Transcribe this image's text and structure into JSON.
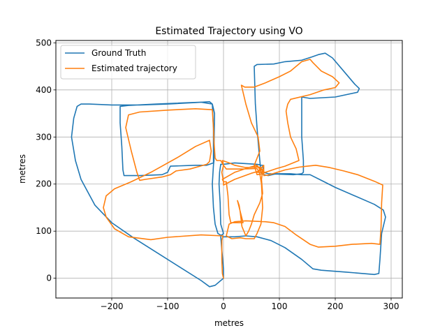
{
  "chart_data": {
    "type": "line",
    "title": "Estimated Trajectory using VO",
    "xlabel": "metres",
    "ylabel": "metres",
    "xlim": [
      -300,
      320
    ],
    "ylim": [
      -42,
      505
    ],
    "xticks": [
      -200,
      -100,
      0,
      100,
      200,
      300
    ],
    "yticks": [
      0,
      100,
      200,
      300,
      400,
      500
    ],
    "grid": true,
    "legend": "top-left",
    "series": [
      {
        "name": "Ground Truth",
        "color": "#1f77b4",
        "points": [
          [
            0,
            0
          ],
          [
            -5,
            -5
          ],
          [
            -15,
            -15
          ],
          [
            -25,
            -18
          ],
          [
            -40,
            -5
          ],
          [
            -80,
            25
          ],
          [
            -120,
            55
          ],
          [
            -160,
            85
          ],
          [
            -200,
            118
          ],
          [
            -230,
            155
          ],
          [
            -255,
            210
          ],
          [
            -265,
            250
          ],
          [
            -272,
            300
          ],
          [
            -268,
            340
          ],
          [
            -262,
            365
          ],
          [
            -255,
            370
          ],
          [
            -240,
            370
          ],
          [
            -200,
            368
          ],
          [
            -150,
            368
          ],
          [
            -100,
            370
          ],
          [
            -50,
            373
          ],
          [
            -25,
            375
          ],
          [
            -20,
            370
          ],
          [
            -18,
            320
          ],
          [
            -18,
            270
          ],
          [
            -18,
            245
          ],
          [
            -30,
            240
          ],
          [
            -50,
            240
          ],
          [
            -95,
            238
          ],
          [
            -100,
            225
          ],
          [
            -110,
            220
          ],
          [
            -150,
            218
          ],
          [
            -178,
            218
          ],
          [
            -180,
            230
          ],
          [
            -182,
            280
          ],
          [
            -185,
            330
          ],
          [
            -185,
            365
          ],
          [
            -170,
            367
          ],
          [
            -120,
            370
          ],
          [
            -80,
            372
          ],
          [
            -40,
            374
          ],
          [
            -20,
            370
          ],
          [
            -16,
            350
          ],
          [
            -17,
            280
          ],
          [
            -17,
            250
          ],
          [
            -18,
            240
          ],
          [
            -20,
            200
          ],
          [
            -18,
            150
          ],
          [
            -15,
            115
          ],
          [
            -10,
            95
          ],
          [
            0,
            88
          ],
          [
            20,
            88
          ],
          [
            40,
            90
          ],
          [
            60,
            88
          ],
          [
            85,
            80
          ],
          [
            110,
            65
          ],
          [
            140,
            40
          ],
          [
            160,
            20
          ],
          [
            175,
            17
          ],
          [
            220,
            13
          ],
          [
            270,
            8
          ],
          [
            278,
            10
          ],
          [
            280,
            40
          ],
          [
            283,
            95
          ],
          [
            290,
            130
          ],
          [
            286,
            145
          ],
          [
            270,
            157
          ],
          [
            200,
            193
          ],
          [
            180,
            205
          ],
          [
            155,
            220
          ],
          [
            140,
            220
          ],
          [
            120,
            222
          ],
          [
            95,
            222
          ],
          [
            80,
            218
          ],
          [
            72,
            220
          ],
          [
            67,
            225
          ],
          [
            65,
            250
          ],
          [
            62,
            290
          ],
          [
            60,
            320
          ],
          [
            57,
            370
          ],
          [
            56,
            410
          ],
          [
            55,
            450
          ],
          [
            60,
            454
          ],
          [
            90,
            455
          ],
          [
            110,
            460
          ],
          [
            140,
            463
          ],
          [
            158,
            470
          ],
          [
            170,
            475
          ],
          [
            182,
            478
          ],
          [
            195,
            468
          ],
          [
            215,
            440
          ],
          [
            235,
            412
          ],
          [
            243,
            403
          ],
          [
            240,
            395
          ],
          [
            200,
            385
          ],
          [
            155,
            382
          ],
          [
            140,
            385
          ],
          [
            140,
            370
          ],
          [
            140,
            300
          ],
          [
            143,
            250
          ],
          [
            143,
            225
          ],
          [
            140,
            222
          ],
          [
            125,
            220
          ],
          [
            80,
            222
          ],
          [
            72,
            225
          ],
          [
            70,
            240
          ],
          [
            60,
            242
          ],
          [
            20,
            245
          ],
          [
            0,
            242
          ],
          [
            -5,
            242
          ],
          [
            -7,
            225
          ],
          [
            -8,
            200
          ],
          [
            -6,
            160
          ],
          [
            -5,
            115
          ],
          [
            0,
            95
          ],
          [
            -5,
            90
          ],
          [
            -3,
            60
          ],
          [
            0,
            20
          ],
          [
            0,
            2
          ]
        ]
      },
      {
        "name": "Estimated trajectory",
        "color": "#ff7f0e",
        "points": [
          [
            0,
            0
          ],
          [
            -2,
            10
          ],
          [
            -3,
            40
          ],
          [
            -3,
            80
          ],
          [
            -1,
            90
          ],
          [
            -40,
            92
          ],
          [
            -100,
            87
          ],
          [
            -130,
            82
          ],
          [
            -170,
            88
          ],
          [
            -195,
            105
          ],
          [
            -210,
            130
          ],
          [
            -215,
            150
          ],
          [
            -210,
            175
          ],
          [
            -195,
            190
          ],
          [
            -165,
            205
          ],
          [
            -130,
            225
          ],
          [
            -80,
            258
          ],
          [
            -50,
            280
          ],
          [
            -25,
            293
          ],
          [
            -22,
            270
          ],
          [
            -25,
            248
          ],
          [
            -30,
            242
          ],
          [
            -60,
            232
          ],
          [
            -85,
            228
          ],
          [
            -95,
            220
          ],
          [
            -110,
            215
          ],
          [
            -140,
            210
          ],
          [
            -150,
            208
          ],
          [
            -155,
            225
          ],
          [
            -165,
            270
          ],
          [
            -175,
            320
          ],
          [
            -170,
            347
          ],
          [
            -150,
            353
          ],
          [
            -100,
            357
          ],
          [
            -50,
            360
          ],
          [
            -20,
            358
          ],
          [
            -18,
            320
          ],
          [
            -17,
            290
          ],
          [
            -15,
            255
          ],
          [
            -12,
            250
          ],
          [
            -5,
            250
          ],
          [
            0,
            240
          ],
          [
            -3,
            225
          ],
          [
            0,
            205
          ],
          [
            0,
            198
          ],
          [
            20,
            210
          ],
          [
            50,
            223
          ],
          [
            65,
            228
          ],
          [
            72,
            232
          ],
          [
            72,
            218
          ],
          [
            80,
            219
          ],
          [
            110,
            230
          ],
          [
            135,
            236
          ],
          [
            150,
            238
          ],
          [
            165,
            240
          ],
          [
            190,
            235
          ],
          [
            215,
            228
          ],
          [
            240,
            220
          ],
          [
            270,
            206
          ],
          [
            285,
            198
          ],
          [
            283,
            160
          ],
          [
            282,
            110
          ],
          [
            280,
            72
          ],
          [
            265,
            74
          ],
          [
            230,
            72
          ],
          [
            200,
            68
          ],
          [
            170,
            66
          ],
          [
            155,
            72
          ],
          [
            130,
            92
          ],
          [
            110,
            110
          ],
          [
            90,
            118
          ],
          [
            75,
            120
          ],
          [
            40,
            122
          ],
          [
            20,
            120
          ],
          [
            10,
            115
          ],
          [
            5,
            90
          ],
          [
            15,
            84
          ],
          [
            30,
            86
          ],
          [
            40,
            84
          ],
          [
            55,
            84
          ],
          [
            60,
            95
          ],
          [
            67,
            115
          ],
          [
            70,
            150
          ],
          [
            68,
            200
          ],
          [
            65,
            222
          ],
          [
            60,
            233
          ],
          [
            30,
            232
          ],
          [
            5,
            232
          ],
          [
            0,
            240
          ],
          [
            -2,
            250
          ],
          [
            10,
            245
          ],
          [
            20,
            240
          ],
          [
            40,
            235
          ],
          [
            60,
            236
          ],
          [
            65,
            236
          ],
          [
            70,
            230
          ],
          [
            68,
            210
          ],
          [
            70,
            180
          ],
          [
            65,
            160
          ],
          [
            55,
            135
          ],
          [
            50,
            115
          ],
          [
            45,
            100
          ],
          [
            40,
            90
          ],
          [
            33,
            110
          ],
          [
            30,
            140
          ],
          [
            28,
            155
          ],
          [
            25,
            165
          ],
          [
            35,
            118
          ],
          [
            30,
            118
          ],
          [
            20,
            118
          ],
          [
            13,
            118
          ],
          [
            10,
            135
          ],
          [
            8,
            175
          ],
          [
            5,
            205
          ],
          [
            0,
            205
          ],
          [
            -2,
            210
          ],
          [
            20,
            225
          ],
          [
            45,
            235
          ],
          [
            60,
            240
          ],
          [
            70,
            222
          ],
          [
            60,
            220
          ],
          [
            55,
            240
          ],
          [
            65,
            270
          ],
          [
            62,
            300
          ],
          [
            50,
            330
          ],
          [
            40,
            370
          ],
          [
            35,
            395
          ],
          [
            32,
            410
          ],
          [
            38,
            406
          ],
          [
            55,
            406
          ],
          [
            75,
            415
          ],
          [
            100,
            428
          ],
          [
            120,
            440
          ],
          [
            140,
            460
          ],
          [
            155,
            465
          ],
          [
            160,
            458
          ],
          [
            175,
            440
          ],
          [
            195,
            428
          ],
          [
            207,
            415
          ],
          [
            200,
            405
          ],
          [
            180,
            400
          ],
          [
            155,
            390
          ],
          [
            120,
            380
          ],
          [
            115,
            370
          ],
          [
            112,
            355
          ],
          [
            115,
            330
          ],
          [
            120,
            300
          ],
          [
            130,
            275
          ],
          [
            135,
            250
          ],
          [
            110,
            238
          ],
          [
            95,
            233
          ],
          [
            75,
            225
          ],
          [
            60,
            225
          ],
          [
            72,
            240
          ],
          [
            72,
            226
          ],
          [
            65,
            235
          ],
          [
            55,
            240
          ]
        ]
      }
    ]
  }
}
